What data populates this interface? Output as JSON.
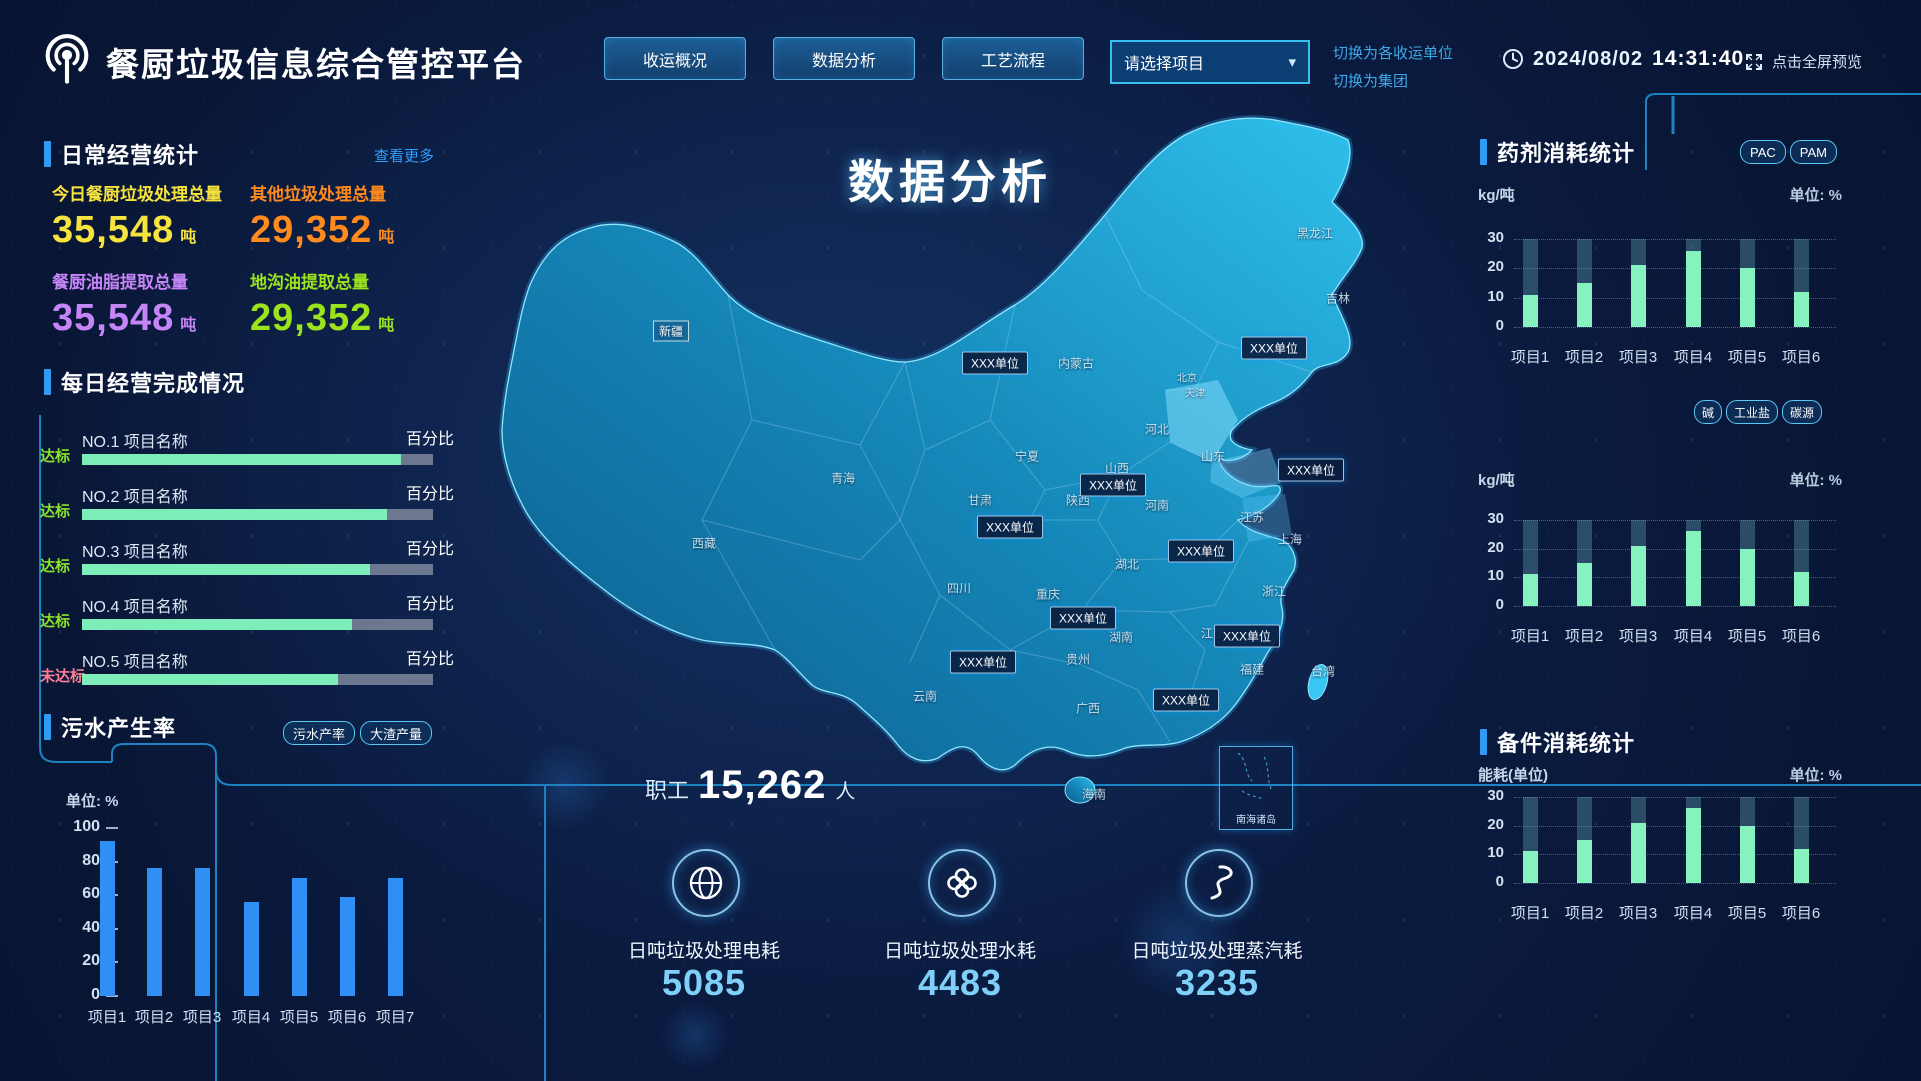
{
  "header": {
    "title": "餐厨垃圾信息综合管控平台",
    "nav": [
      "收运概况",
      "数据分析",
      "工艺流程"
    ],
    "project_select": {
      "value": "请选择项目"
    },
    "switch_links": [
      "切换为各收运单位",
      "切换为集团"
    ],
    "date": "2024/08/02",
    "time": "14:31:40",
    "fullscreen_label": "点击全屏预览"
  },
  "left": {
    "daily_stats": {
      "title": "日常经营统计",
      "more": "查看更多",
      "items": [
        {
          "label": "今日餐厨垃圾处理总量",
          "value": "35,548",
          "unit": "吨",
          "color": "#f7e33d"
        },
        {
          "label": "其他垃圾处理总量",
          "value": "29,352",
          "unit": "吨",
          "color": "#ff8a1e"
        },
        {
          "label": "餐厨油脂提取总量",
          "value": "35,548",
          "unit": "吨",
          "color": "#c585f7"
        },
        {
          "label": "地沟油提取总量",
          "value": "29,352",
          "unit": "吨",
          "color": "#9be31c"
        }
      ]
    },
    "completion": {
      "title": "每日经营完成情况",
      "percent_label": "百分比",
      "project_label": "项目名称",
      "rows": [
        {
          "status": "达标",
          "no": "NO.1",
          "percent": 91
        },
        {
          "status": "达标",
          "no": "NO.2",
          "percent": 87
        },
        {
          "status": "达标",
          "no": "NO.3",
          "percent": 82
        },
        {
          "status": "达标",
          "no": "NO.4",
          "percent": 77
        },
        {
          "status": "未达标",
          "no": "NO.5",
          "percent": 73
        }
      ],
      "status_colors": {
        "达标": "#8be32c",
        "未达标": "#ff7d96"
      }
    },
    "sewage": {
      "title": "污水产生率",
      "tabs": [
        "污水产率",
        "大渣产量"
      ]
    }
  },
  "center": {
    "headline": "数据分析",
    "map": {
      "provinces": [
        "新疆",
        "西藏",
        "青海",
        "甘肃",
        "宁夏",
        "内蒙古",
        "黑龙江",
        "吉林",
        "北京",
        "天津",
        "河北",
        "山西",
        "山东",
        "陕西",
        "河南",
        "江苏",
        "上海",
        "安徽",
        "湖北",
        "四川",
        "重庆",
        "湖南",
        "江西",
        "浙江",
        "福建",
        "贵州",
        "云南",
        "广西",
        "海南",
        "台湾"
      ],
      "unit_marker_label": "XXX单位",
      "unit_marker_count": 10,
      "inset_label": "南海诸岛"
    },
    "staff": {
      "label": "职工",
      "value": "15,262",
      "unit": "人"
    },
    "kpis": [
      {
        "icon": "globe-icon",
        "label": "日吨垃圾处理电耗",
        "value": "5085"
      },
      {
        "icon": "clover-icon",
        "label": "日吨垃圾处理水耗",
        "value": "4483"
      },
      {
        "icon": "steam-icon",
        "label": "日吨垃圾处理蒸汽耗",
        "value": "3235"
      }
    ]
  },
  "right": {
    "reagent": {
      "title": "药剂消耗统计",
      "tabs": [
        "PAC",
        "PAM"
      ],
      "tabs2": [
        "碱",
        "工业盐",
        "碳源"
      ]
    },
    "spare": {
      "title": "备件消耗统计"
    }
  },
  "chart_data": [
    {
      "id": "chart-sewage",
      "type": "bar",
      "title": "污水产生率",
      "unit_label": "单位: %",
      "categories": [
        "项目1",
        "项目2",
        "项目3",
        "项目4",
        "项目5",
        "项目6",
        "项目7"
      ],
      "values": [
        92,
        76,
        76,
        56,
        70,
        59,
        70
      ],
      "ylim": [
        0,
        100
      ],
      "yticks": [
        0,
        20,
        40,
        60,
        80,
        100
      ],
      "bar_color": "#2f8ff5",
      "grid": false,
      "legend": "none"
    },
    {
      "id": "chart-r1",
      "type": "bar",
      "title": "药剂消耗统计 PAC/PAM",
      "left_unit": "kg/吨",
      "right_unit": "单位: %",
      "categories": [
        "项目1",
        "项目2",
        "项目3",
        "项目4",
        "项目5",
        "项目6"
      ],
      "values": [
        11,
        15,
        21,
        26,
        20,
        12
      ],
      "ylim": [
        0,
        30
      ],
      "yticks": [
        0,
        10,
        20,
        30
      ],
      "track_max": 30,
      "bar_color": "#85f2c0",
      "track_color": "rgba(120,200,205,0.30)",
      "grid": true
    },
    {
      "id": "chart-r2",
      "type": "bar",
      "title": "药剂消耗统计 碱/工业盐/碳源",
      "left_unit": "kg/吨",
      "right_unit": "单位: %",
      "categories": [
        "项目1",
        "项目2",
        "项目3",
        "项目4",
        "项目5",
        "项目6"
      ],
      "values": [
        11,
        15,
        21,
        26,
        20,
        12
      ],
      "ylim": [
        0,
        30
      ],
      "yticks": [
        0,
        10,
        20,
        30
      ],
      "track_max": 30,
      "bar_color": "#85f2c0",
      "track_color": "rgba(120,200,205,0.30)",
      "grid": true
    },
    {
      "id": "chart-r3",
      "type": "bar",
      "title": "备件消耗统计",
      "left_unit": "能耗(单位)",
      "right_unit": "单位: %",
      "categories": [
        "项目1",
        "项目2",
        "项目3",
        "项目4",
        "项目5",
        "项目6"
      ],
      "values": [
        11,
        15,
        21,
        26,
        20,
        12
      ],
      "ylim": [
        0,
        30
      ],
      "yticks": [
        0,
        10,
        20,
        30
      ],
      "track_max": 30,
      "bar_color": "#85f2c0",
      "track_color": "rgba(120,200,205,0.30)",
      "grid": true
    }
  ]
}
